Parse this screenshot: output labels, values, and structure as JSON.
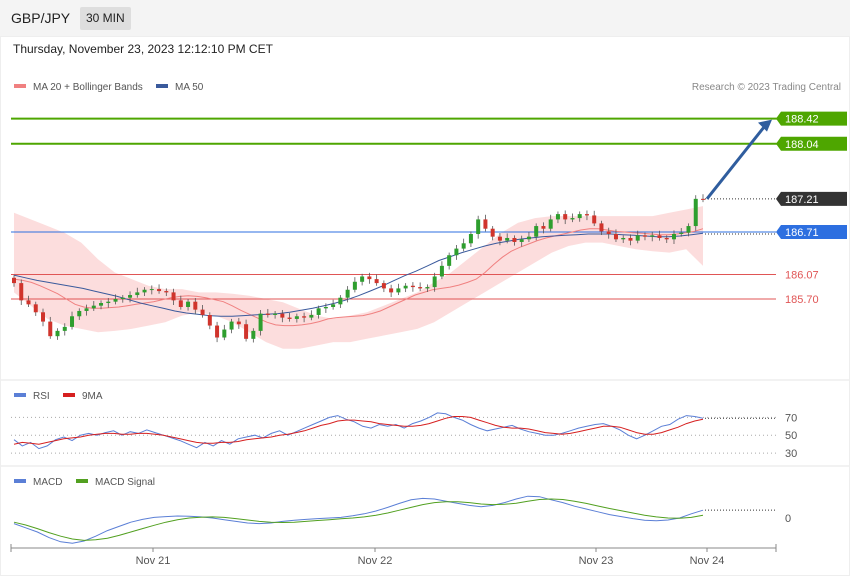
{
  "header": {
    "symbol": "GBP/JPY",
    "timeframe": "30 MIN"
  },
  "datetime": "Thursday, November 23, 2023 12:12:10 PM CET",
  "copyright": "Research © 2023 Trading Central",
  "colors": {
    "bull": "#2e9e2e",
    "bear": "#d0342c",
    "ma20": "#f08080",
    "ma50": "#3a5a9c",
    "band": "#fcd7d7",
    "target": "#4ea600",
    "pivot": "#2d6fe0",
    "support": "#e05555",
    "last": "#333333",
    "arrow": "#2f5d9e",
    "rsi": "#5b7fd6",
    "rsi_ma": "#d62020",
    "macd": "#5b7fd6",
    "macd_signal": "#52a020"
  },
  "chart_data": [
    {
      "type": "candlestick",
      "title": "GBP/JPY",
      "legend": [
        {
          "name": "MA 20 + Bollinger Bands",
          "color": "#f08080"
        },
        {
          "name": "MA 50",
          "color": "#3a5a9c"
        }
      ],
      "legend_position": "top-left",
      "x_ticks": [
        "Nov 21",
        "Nov 22",
        "Nov 23",
        "Nov 24"
      ],
      "ylim": [
        184.6,
        188.7
      ],
      "closes": [
        185.94,
        185.68,
        185.62,
        185.5,
        185.36,
        185.14,
        185.22,
        185.28,
        185.44,
        185.52,
        185.56,
        185.6,
        185.64,
        185.66,
        185.7,
        185.72,
        185.76,
        185.8,
        185.84,
        185.85,
        185.82,
        185.8,
        185.68,
        185.58,
        185.66,
        185.54,
        185.46,
        185.3,
        185.12,
        185.24,
        185.36,
        185.32,
        185.1,
        185.22,
        185.48,
        185.46,
        185.48,
        185.42,
        185.4,
        185.44,
        185.42,
        185.46,
        185.56,
        185.58,
        185.62,
        185.72,
        185.84,
        185.96,
        186.04,
        186,
        185.94,
        185.86,
        185.8,
        185.86,
        185.9,
        185.88,
        185.86,
        185.88,
        186.04,
        186.2,
        186.36,
        186.46,
        186.54,
        186.68,
        186.9,
        186.76,
        186.64,
        186.58,
        186.62,
        186.56,
        186.6,
        186.64,
        186.8,
        186.76,
        186.9,
        186.98,
        186.9,
        186.92,
        186.98,
        186.96,
        186.84,
        186.72,
        186.68,
        186.6,
        186.62,
        186.58,
        186.66,
        186.64,
        186.66,
        186.62,
        186.6,
        186.68,
        186.7,
        186.8,
        187.21,
        187.2
      ],
      "ma20": [
        186,
        185.98,
        185.95,
        185.9,
        185.84,
        185.78,
        185.7,
        185.62,
        185.58,
        185.56,
        185.56,
        185.57,
        185.58,
        185.6,
        185.62,
        185.64,
        185.66,
        185.69,
        185.72,
        185.74,
        185.75,
        185.74,
        185.72,
        185.69,
        185.66,
        185.6,
        185.53,
        185.47,
        185.41,
        185.35,
        185.31,
        185.3,
        185.3,
        185.31,
        185.33,
        185.36,
        185.4,
        185.42,
        185.43,
        185.44,
        185.45,
        185.48,
        185.52,
        185.58,
        185.64,
        185.7,
        185.76,
        185.8,
        185.84,
        185.86,
        185.88,
        185.91,
        185.95,
        186,
        186.1,
        186.22,
        186.33,
        186.42,
        186.48,
        186.53,
        186.58,
        186.62,
        186.65,
        186.68,
        186.71,
        186.74,
        186.76,
        186.76,
        186.74,
        186.72,
        186.71,
        186.7,
        186.69,
        186.68,
        186.67,
        186.67,
        186.68,
        186.7,
        186.72,
        186.76
      ],
      "ma50": [
        186.06,
        186.02,
        185.98,
        185.95,
        185.92,
        185.89,
        185.86,
        185.82,
        185.78,
        185.74,
        185.69,
        185.64,
        185.6,
        185.56,
        185.52,
        185.49,
        185.47,
        185.45,
        185.44,
        185.44,
        185.45,
        185.46,
        185.47,
        185.48,
        185.5,
        185.53,
        185.56,
        185.6,
        185.64,
        185.69,
        185.75,
        185.82,
        185.89,
        185.97,
        186.05,
        186.12,
        186.2,
        186.28,
        186.34,
        186.4,
        186.45,
        186.5,
        186.54,
        186.57,
        186.6,
        186.62,
        186.64,
        186.65,
        186.66,
        186.67,
        186.68,
        186.68,
        186.68,
        186.67,
        186.66,
        186.65,
        186.64,
        186.64,
        186.65,
        186.67,
        186.69
      ],
      "bb_upper": [
        187.0,
        186.9,
        186.8,
        186.7,
        186.55,
        186.3,
        186.1,
        186.0,
        185.9,
        185.85,
        185.85,
        185.8,
        185.8,
        185.78,
        185.75,
        185.7,
        185.65,
        185.55,
        185.45,
        185.4,
        185.45,
        185.5,
        185.6,
        185.7,
        185.8,
        185.95,
        186.1,
        186.3,
        186.5,
        186.7,
        186.85,
        186.92,
        186.95,
        186.95,
        186.95,
        186.95,
        186.95,
        186.95,
        186.95,
        187.0,
        187.05,
        187.1
      ],
      "bb_lower": [
        185.8,
        185.6,
        185.4,
        185.3,
        185.25,
        185.2,
        185.22,
        185.25,
        185.3,
        185.35,
        185.45,
        185.5,
        185.45,
        185.35,
        185.2,
        185.05,
        184.95,
        184.95,
        185.0,
        185.05,
        185.05,
        185.1,
        185.15,
        185.2,
        185.25,
        185.35,
        185.5,
        185.65,
        185.8,
        185.95,
        186.1,
        186.25,
        186.4,
        186.5,
        186.55,
        186.55,
        186.5,
        186.45,
        186.42,
        186.4,
        186.45,
        186.2
      ],
      "levels": [
        {
          "value": "188.42",
          "kind": "target"
        },
        {
          "value": "188.04",
          "kind": "target"
        },
        {
          "value": "187.21",
          "kind": "last"
        },
        {
          "value": "186.71",
          "kind": "pivot"
        },
        {
          "value": "186.07",
          "kind": "support"
        },
        {
          "value": "185.70",
          "kind": "support"
        }
      ],
      "forecast_arrow": {
        "from": 187.21,
        "to": 188.42
      }
    },
    {
      "type": "line",
      "title": "",
      "legend": [
        {
          "name": "RSI",
          "color": "#5b7fd6"
        },
        {
          "name": "9MA",
          "color": "#d62020"
        }
      ],
      "y_ticks": [
        "70",
        "50",
        "30"
      ],
      "ylim": [
        20,
        85
      ],
      "rsi": [
        45,
        38,
        42,
        35,
        38,
        45,
        48,
        44,
        50,
        52,
        50,
        53,
        55,
        50,
        54,
        52,
        56,
        53,
        50,
        47,
        44,
        40,
        36,
        42,
        38,
        44,
        40,
        46,
        48,
        50,
        47,
        52,
        55,
        50,
        54,
        58,
        62,
        66,
        70,
        72,
        68,
        65,
        60,
        58,
        62,
        60,
        62,
        58,
        63,
        66,
        70,
        75,
        74,
        70,
        67,
        62,
        58,
        55,
        57,
        59,
        61,
        57,
        54,
        52,
        50,
        50,
        52,
        55,
        58,
        60,
        62,
        63,
        60,
        56,
        50,
        46,
        50,
        55,
        60,
        62,
        68,
        72,
        71,
        69
      ],
      "rsi_ma": [
        40,
        42,
        41,
        40,
        42,
        44,
        46,
        47,
        48,
        50,
        51,
        52,
        52,
        51,
        51,
        52,
        52,
        51,
        50,
        48,
        46,
        44,
        42,
        41,
        41,
        42,
        42,
        43,
        45,
        46,
        47,
        48,
        50,
        51,
        53,
        55,
        58,
        61,
        63,
        66,
        67,
        67,
        66,
        65,
        63,
        62,
        61,
        60,
        60,
        61,
        63,
        66,
        69,
        71,
        71,
        70,
        67,
        64,
        61,
        59,
        58,
        58,
        57,
        55,
        53,
        52,
        51,
        52,
        54,
        56,
        58,
        60,
        60,
        59,
        56,
        53,
        51,
        51,
        53,
        56,
        59,
        63,
        66,
        68
      ]
    },
    {
      "type": "line",
      "title": "",
      "legend": [
        {
          "name": "MACD",
          "color": "#5b7fd6"
        },
        {
          "name": "MACD Signal",
          "color": "#52a020"
        }
      ],
      "y_ticks": [
        "0"
      ],
      "ylim": [
        -1,
        1
      ],
      "macd": [
        -0.2,
        -0.35,
        -0.5,
        -0.7,
        -0.85,
        -0.9,
        -0.82,
        -0.65,
        -0.45,
        -0.3,
        -0.15,
        -0.05,
        0.02,
        0.05,
        0.07,
        0.06,
        0.04,
        0,
        -0.06,
        -0.12,
        -0.18,
        -0.2,
        -0.18,
        -0.12,
        -0.08,
        -0.05,
        -0.02,
        0,
        0.02,
        0.08,
        0.15,
        0.25,
        0.38,
        0.52,
        0.65,
        0.7,
        0.68,
        0.6,
        0.52,
        0.45,
        0.4,
        0.45,
        0.55,
        0.68,
        0.78,
        0.76,
        0.65,
        0.55,
        0.42,
        0.32,
        0.22,
        0.12,
        0.05,
        -0.02,
        -0.08,
        -0.1,
        -0.07,
        0,
        0.15,
        0.28
      ],
      "macd_signal": [
        -0.15,
        -0.25,
        -0.38,
        -0.52,
        -0.65,
        -0.75,
        -0.8,
        -0.78,
        -0.72,
        -0.62,
        -0.5,
        -0.38,
        -0.26,
        -0.15,
        -0.06,
        0,
        0.03,
        0.04,
        0.02,
        -0.02,
        -0.07,
        -0.12,
        -0.15,
        -0.16,
        -0.15,
        -0.12,
        -0.09,
        -0.06,
        -0.03,
        0,
        0.04,
        0.1,
        0.18,
        0.28,
        0.38,
        0.48,
        0.55,
        0.58,
        0.58,
        0.55,
        0.5,
        0.48,
        0.49,
        0.53,
        0.6,
        0.66,
        0.68,
        0.66,
        0.6,
        0.52,
        0.43,
        0.34,
        0.26,
        0.18,
        0.1,
        0.04,
        0,
        -0.01,
        0.02,
        0.1
      ]
    }
  ]
}
